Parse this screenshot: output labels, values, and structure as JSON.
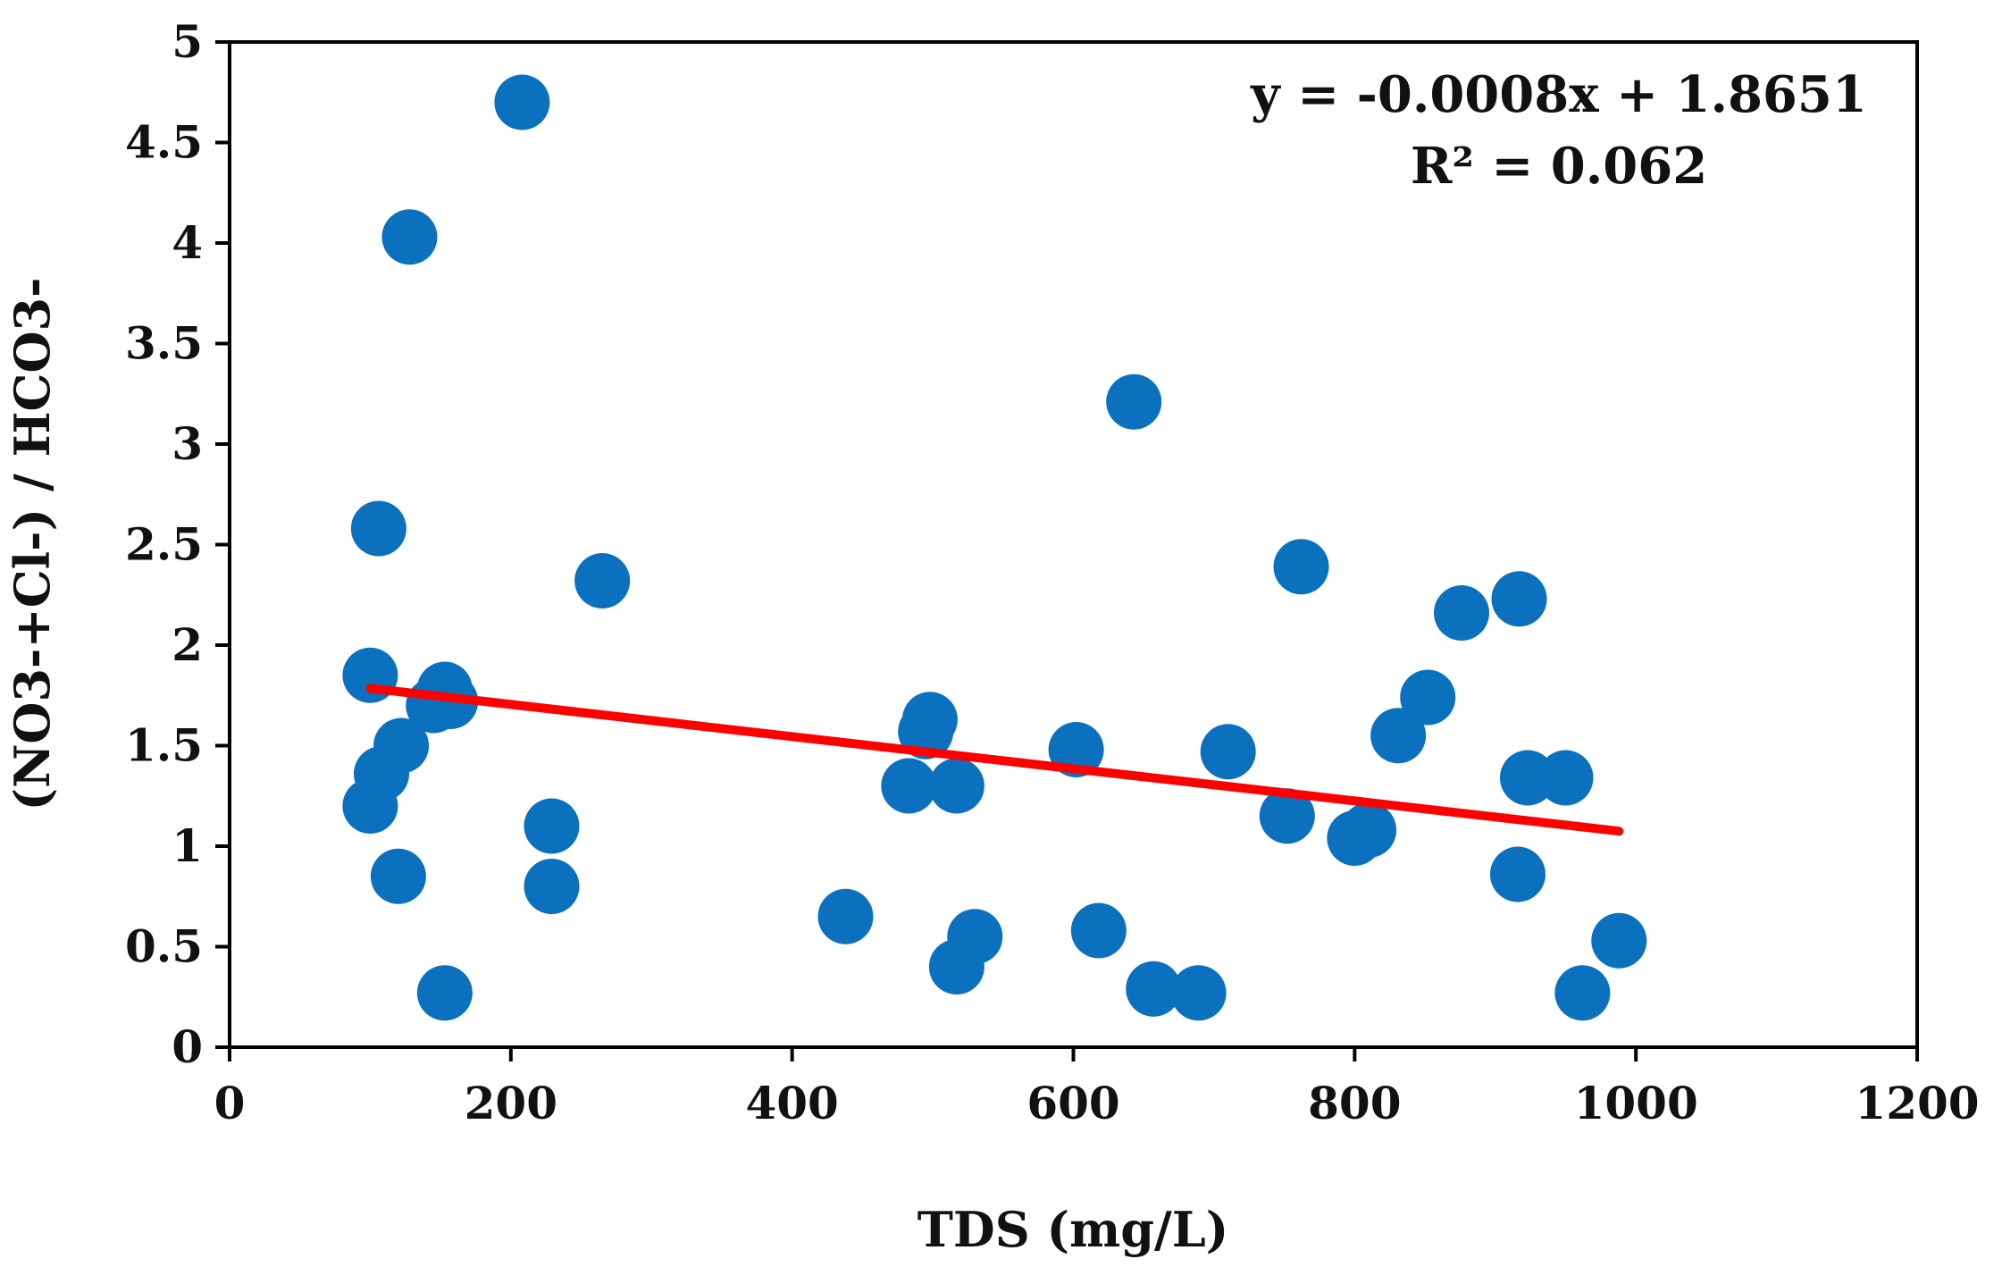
{
  "chart_data": {
    "type": "scatter",
    "xlabel": "TDS (mg/L)",
    "ylabel": "(NO3-+Cl-) / HCO3-",
    "xlim": [
      0,
      1200
    ],
    "ylim": [
      0,
      5
    ],
    "x_ticks": [
      "0",
      "200",
      "400",
      "600",
      "800",
      "1000",
      "1200"
    ],
    "y_ticks": [
      "0",
      "0.5",
      "1",
      "1.5",
      "2",
      "2.5",
      "3",
      "3.5",
      "4",
      "4.5",
      "5"
    ],
    "grid": false,
    "marker_color": "#0b70be",
    "trendline_color": "#ff0000",
    "series": [
      {
        "name": "samples",
        "x": [
          208,
          128,
          643,
          106,
          265,
          762,
          100,
          153,
          157,
          145,
          876,
          917,
          498,
          495,
          852,
          602,
          710,
          831,
          122,
          108,
          100,
          950,
          923,
          483,
          517,
          752,
          229,
          810,
          800,
          120,
          916,
          229,
          438,
          618,
          530,
          517,
          988,
          153,
          657,
          689,
          962
        ],
        "y": [
          4.7,
          4.03,
          3.21,
          2.58,
          2.32,
          2.39,
          1.85,
          1.78,
          1.72,
          1.7,
          2.16,
          2.23,
          1.63,
          1.57,
          1.74,
          1.48,
          1.47,
          1.55,
          1.5,
          1.36,
          1.2,
          1.34,
          1.34,
          1.3,
          1.3,
          1.15,
          1.1,
          1.08,
          1.04,
          0.85,
          0.86,
          0.8,
          0.65,
          0.58,
          0.55,
          0.4,
          0.53,
          0.27,
          0.29,
          0.27,
          0.27
        ]
      }
    ],
    "trendline": {
      "slope": -0.0008,
      "intercept": 1.8651,
      "x_range": [
        100,
        988
      ]
    },
    "annotations": {
      "equation": "y = -0.0008x + 1.8651",
      "r_squared": "R² = 0.062"
    }
  }
}
